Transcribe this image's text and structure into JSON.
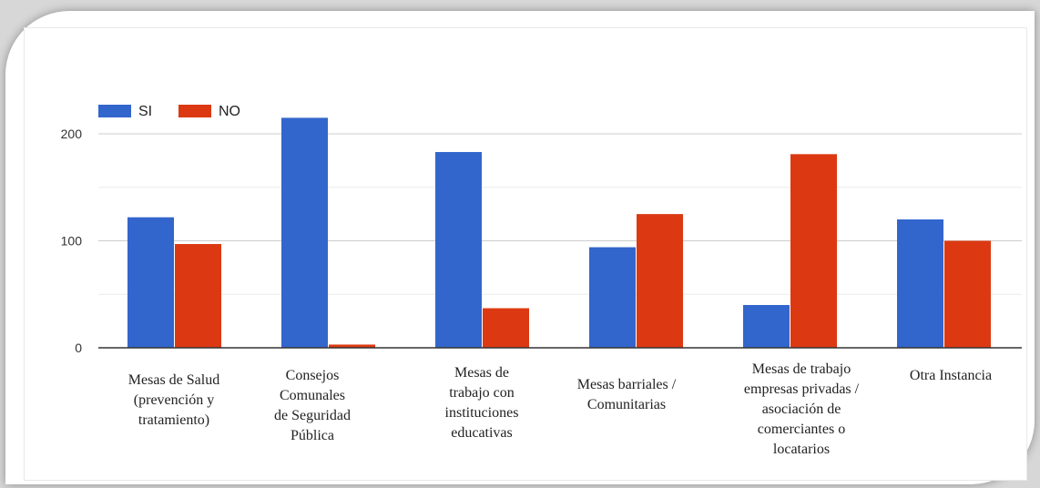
{
  "chart_data": {
    "type": "bar",
    "title": "",
    "xlabel": "",
    "ylabel": "",
    "ylim": [
      0,
      220
    ],
    "yticks": [
      0,
      100,
      200
    ],
    "grid": true,
    "legend_position": "top-left",
    "categories": [
      [
        "Mesas de Salud",
        "(prevención y",
        "tratamiento)"
      ],
      [
        "Consejos",
        "Comunales",
        "de Seguridad",
        "Pública"
      ],
      [
        "Mesas de",
        "trabajo con",
        "instituciones",
        "educativas"
      ],
      [
        "Mesas barriales /",
        "Comunitarias"
      ],
      [
        "Mesas de trabajo",
        "empresas privadas /",
        "asociación de",
        "comerciantes o",
        "locatarios"
      ],
      [
        "Otra Instancia"
      ]
    ],
    "series": [
      {
        "name": "SI",
        "color": "#3366cc",
        "values": [
          122,
          215,
          183,
          94,
          40,
          120
        ]
      },
      {
        "name": "NO",
        "color": "#dc3912",
        "values": [
          97,
          3,
          37,
          125,
          181,
          100
        ]
      }
    ]
  }
}
